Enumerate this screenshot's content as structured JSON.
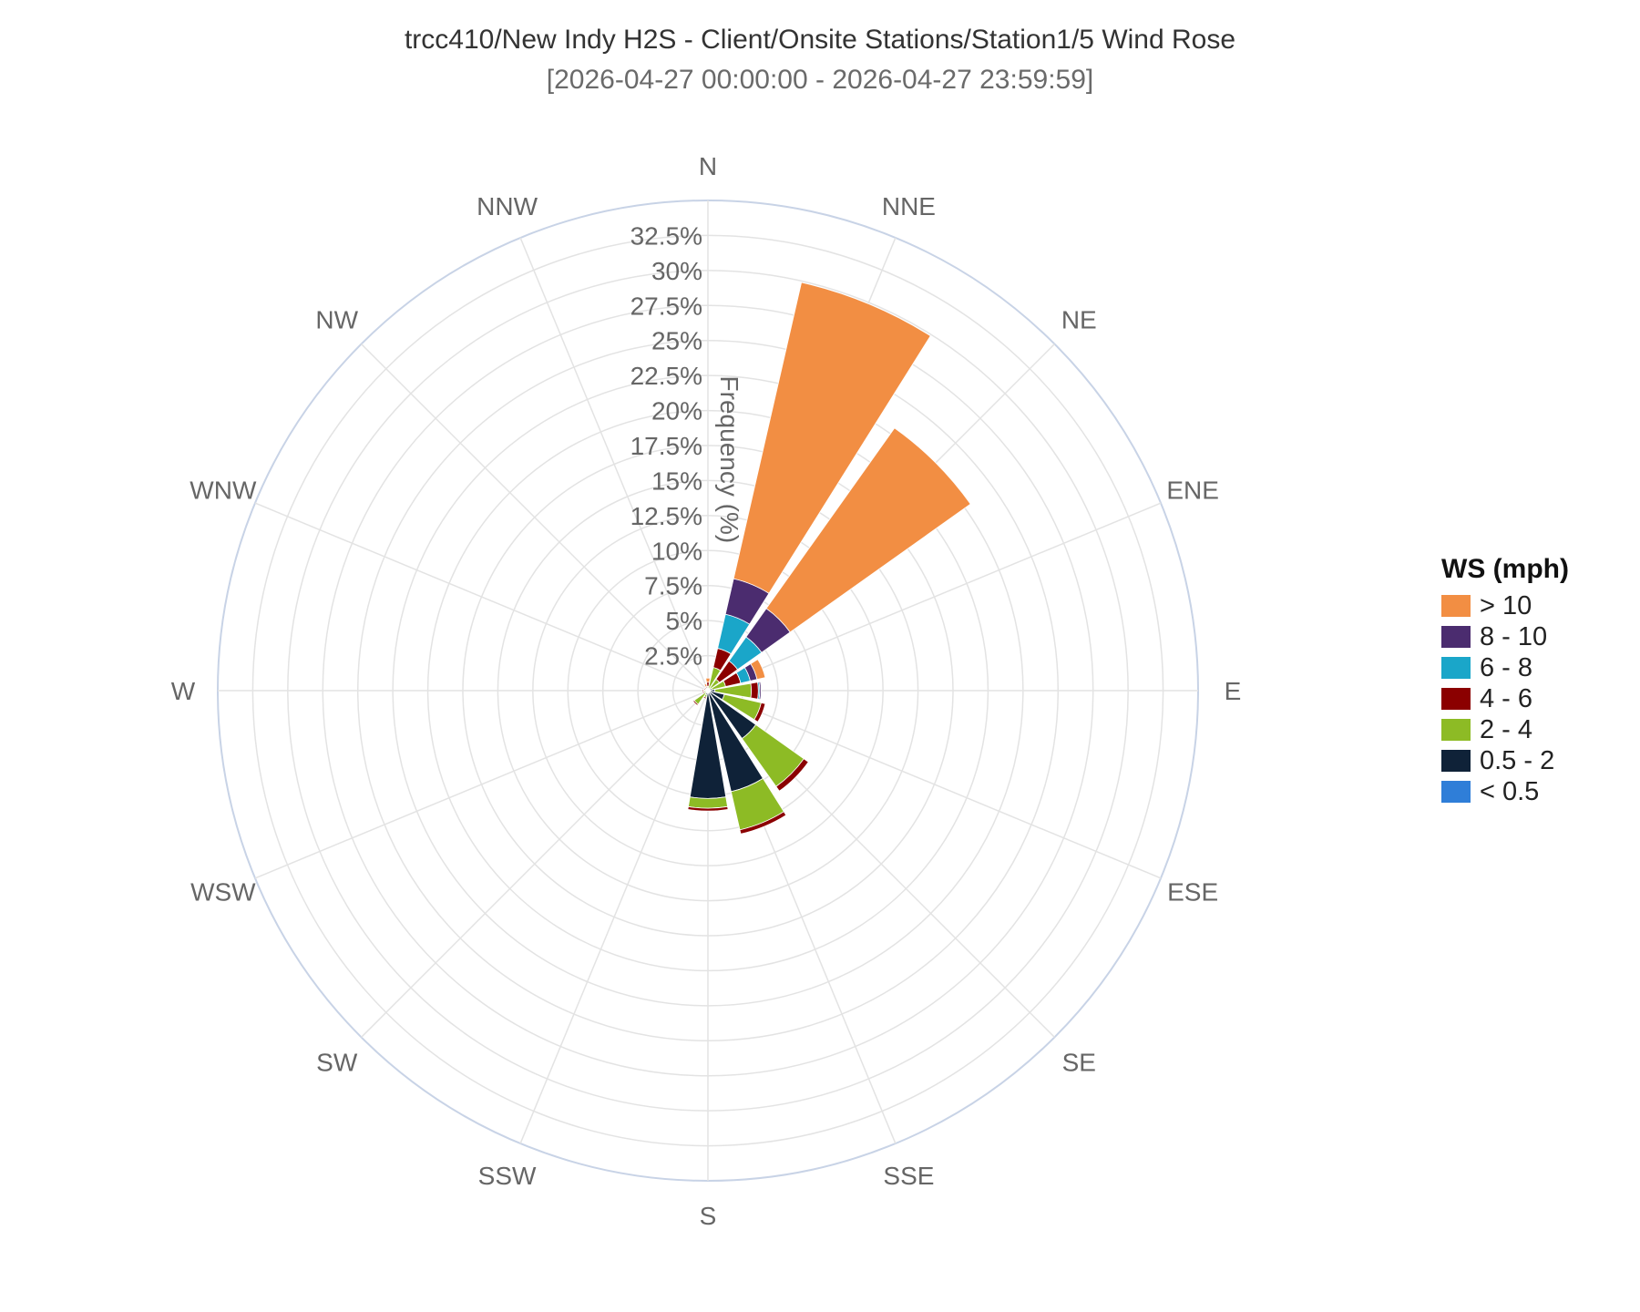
{
  "chart_title": "trcc410/New Indy H2S - Client/Onsite Stations/Station1/5 Wind Rose",
  "chart_subtitle": "[2026-04-27 00:00:00 - 2026-04-27 23:59:59]",
  "legend": {
    "title": "WS (mph)",
    "items": [
      {
        "label": "> 10",
        "color": "#f28e43"
      },
      {
        "label": "8 - 10",
        "color": "#4b2c6f"
      },
      {
        "label": "6 - 8",
        "color": "#1aa6c9"
      },
      {
        "label": "4 - 6",
        "color": "#8b0000"
      },
      {
        "label": "2 - 4",
        "color": "#8dbb25"
      },
      {
        "label": "0.5 - 2",
        "color": "#0f2238"
      },
      {
        "label": "< 0.5",
        "color": "#2f7ed8"
      }
    ]
  },
  "chart_data": {
    "type": "windrose",
    "title": "trcc410/New Indy H2S - Client/Onsite Stations/Station1/5 Wind Rose",
    "subtitle": "[2026-04-27 00:00:00 - 2026-04-27 23:59:59]",
    "radial_axis_label": "Frequency (%)",
    "radial_range": [
      0,
      35
    ],
    "radial_ticks": [
      "2.5%",
      "5%",
      "7.5%",
      "10%",
      "12.5%",
      "15%",
      "17.5%",
      "20%",
      "22.5%",
      "25%",
      "27.5%",
      "30%",
      "32.5%"
    ],
    "radial_tick_values": [
      2.5,
      5,
      7.5,
      10,
      12.5,
      15,
      17.5,
      20,
      22.5,
      25,
      27.5,
      30,
      32.5
    ],
    "directions": [
      "N",
      "NNE",
      "NE",
      "ENE",
      "E",
      "ESE",
      "SE",
      "SSE",
      "S",
      "SSW",
      "SW",
      "WSW",
      "W",
      "WNW",
      "NW",
      "NNW"
    ],
    "legend_title": "WS (mph)",
    "legend_position": "right",
    "series": [
      {
        "name": "< 0.5",
        "color": "#2f7ed8",
        "values": [
          0,
          0,
          0,
          0,
          0,
          0,
          0,
          0,
          0,
          0,
          0,
          0,
          0,
          0,
          0,
          0
        ]
      },
      {
        "name": "0.5 - 2",
        "color": "#0f2238",
        "values": [
          0.1,
          0.1,
          0.2,
          0.3,
          0.5,
          1.2,
          4.2,
          7.4,
          7.7,
          0.3,
          0.2,
          0.1,
          0.1,
          0.1,
          0.1,
          0.1
        ]
      },
      {
        "name": "2 - 4",
        "color": "#8dbb25",
        "values": [
          0.2,
          1.6,
          0.8,
          1.0,
          2.6,
          2.7,
          4.2,
          2.8,
          0.7,
          0.2,
          1.0,
          0.2,
          0.2,
          0.1,
          0.1,
          0.1
        ]
      },
      {
        "name": "4 - 6",
        "color": "#8b0000",
        "values": [
          0.3,
          1.4,
          1.6,
          1.1,
          0.5,
          0.3,
          0.4,
          0.3,
          0.2,
          0.1,
          0.1,
          0.1,
          0.1,
          0.1,
          0.1,
          0.1
        ]
      },
      {
        "name": "6 - 8",
        "color": "#1aa6c9",
        "values": [
          0,
          2.5,
          2.1,
          0.7,
          0.1,
          0,
          0,
          0,
          0,
          0,
          0,
          0,
          0,
          0,
          0,
          0
        ]
      },
      {
        "name": "8 - 10",
        "color": "#4b2c6f",
        "values": [
          0,
          2.6,
          2.5,
          0.5,
          0.1,
          0,
          0,
          0,
          0,
          0,
          0,
          0,
          0,
          0,
          0,
          0
        ]
      },
      {
        "name": "> 10",
        "color": "#f28e43",
        "values": [
          0.3,
          21.7,
          15.8,
          0.6,
          0,
          0,
          0,
          0,
          0,
          0,
          0,
          0,
          0,
          0,
          0,
          0.2
        ]
      }
    ]
  }
}
